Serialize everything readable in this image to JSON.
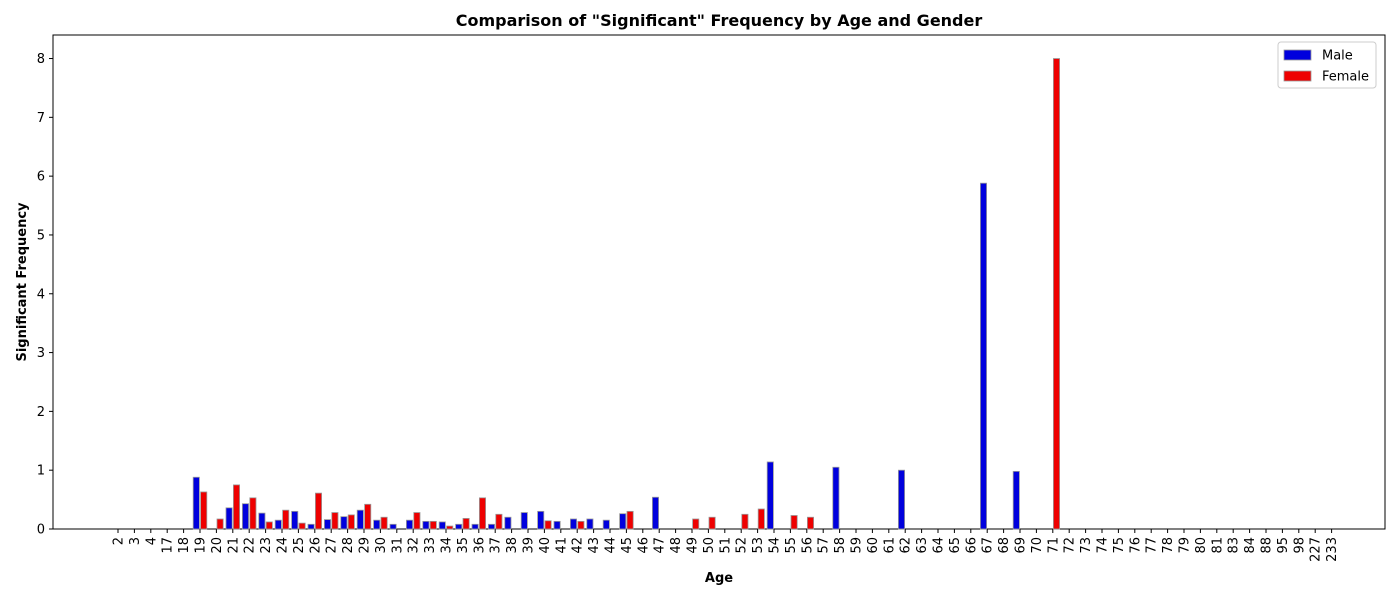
{
  "chart_data": {
    "type": "bar",
    "title": "Comparison of \"Significant\" Frequency by Age and Gender",
    "xlabel": "Age",
    "ylabel": "Significant Frequency",
    "ylim": [
      0,
      8.4
    ],
    "yticks": [
      0,
      1,
      2,
      3,
      4,
      5,
      6,
      7,
      8
    ],
    "grid": false,
    "legend_position": "top-right",
    "categories": [
      "2",
      "3",
      "4",
      "17",
      "18",
      "19",
      "20",
      "21",
      "22",
      "23",
      "24",
      "25",
      "26",
      "27",
      "28",
      "29",
      "30",
      "31",
      "32",
      "33",
      "34",
      "35",
      "36",
      "37",
      "38",
      "39",
      "40",
      "41",
      "42",
      "43",
      "44",
      "45",
      "46",
      "47",
      "48",
      "49",
      "50",
      "51",
      "52",
      "53",
      "54",
      "55",
      "56",
      "57",
      "58",
      "59",
      "60",
      "61",
      "62",
      "63",
      "64",
      "65",
      "66",
      "67",
      "68",
      "69",
      "70",
      "71",
      "72",
      "73",
      "74",
      "75",
      "76",
      "77",
      "78",
      "79",
      "80",
      "81",
      "83",
      "84",
      "88",
      "95",
      "98",
      "227",
      "233"
    ],
    "series": [
      {
        "name": "Male",
        "color": "#0000dd",
        "values": [
          0,
          0,
          0,
          0,
          0,
          0.88,
          0,
          0.36,
          0.43,
          0.27,
          0.15,
          0.3,
          0.08,
          0.16,
          0.21,
          0.32,
          0.15,
          0.08,
          0.15,
          0.13,
          0.12,
          0.08,
          0.08,
          0.08,
          0.2,
          0.28,
          0.3,
          0.13,
          0.17,
          0.17,
          0.15,
          0.26,
          0,
          0.54,
          0,
          0,
          0,
          0,
          0,
          0,
          1.14,
          0,
          0,
          0,
          1.05,
          0,
          0,
          0,
          1.0,
          0,
          0,
          0,
          0,
          5.88,
          0,
          0.98,
          0,
          0,
          0,
          0,
          0,
          0,
          0,
          0,
          0,
          0,
          0,
          0,
          0,
          0,
          0,
          0,
          0,
          0,
          0
        ]
      },
      {
        "name": "Female",
        "color": "#ee0000",
        "values": [
          0,
          0,
          0,
          0,
          0,
          0.63,
          0.17,
          0.75,
          0.53,
          0.12,
          0.32,
          0.1,
          0.61,
          0.28,
          0.24,
          0.42,
          0.2,
          0,
          0.28,
          0.13,
          0.05,
          0.18,
          0.53,
          0.25,
          0,
          0,
          0.14,
          0,
          0.13,
          0,
          0,
          0.3,
          0,
          0,
          0,
          0.17,
          0.2,
          0,
          0.25,
          0.34,
          0,
          0.23,
          0.2,
          0,
          0,
          0,
          0,
          0,
          0,
          0,
          0,
          0,
          0,
          0,
          0,
          0,
          0,
          8.0,
          0,
          0,
          0,
          0,
          0,
          0,
          0,
          0,
          0,
          0,
          0,
          0,
          0,
          0,
          0,
          0,
          0
        ]
      }
    ]
  }
}
